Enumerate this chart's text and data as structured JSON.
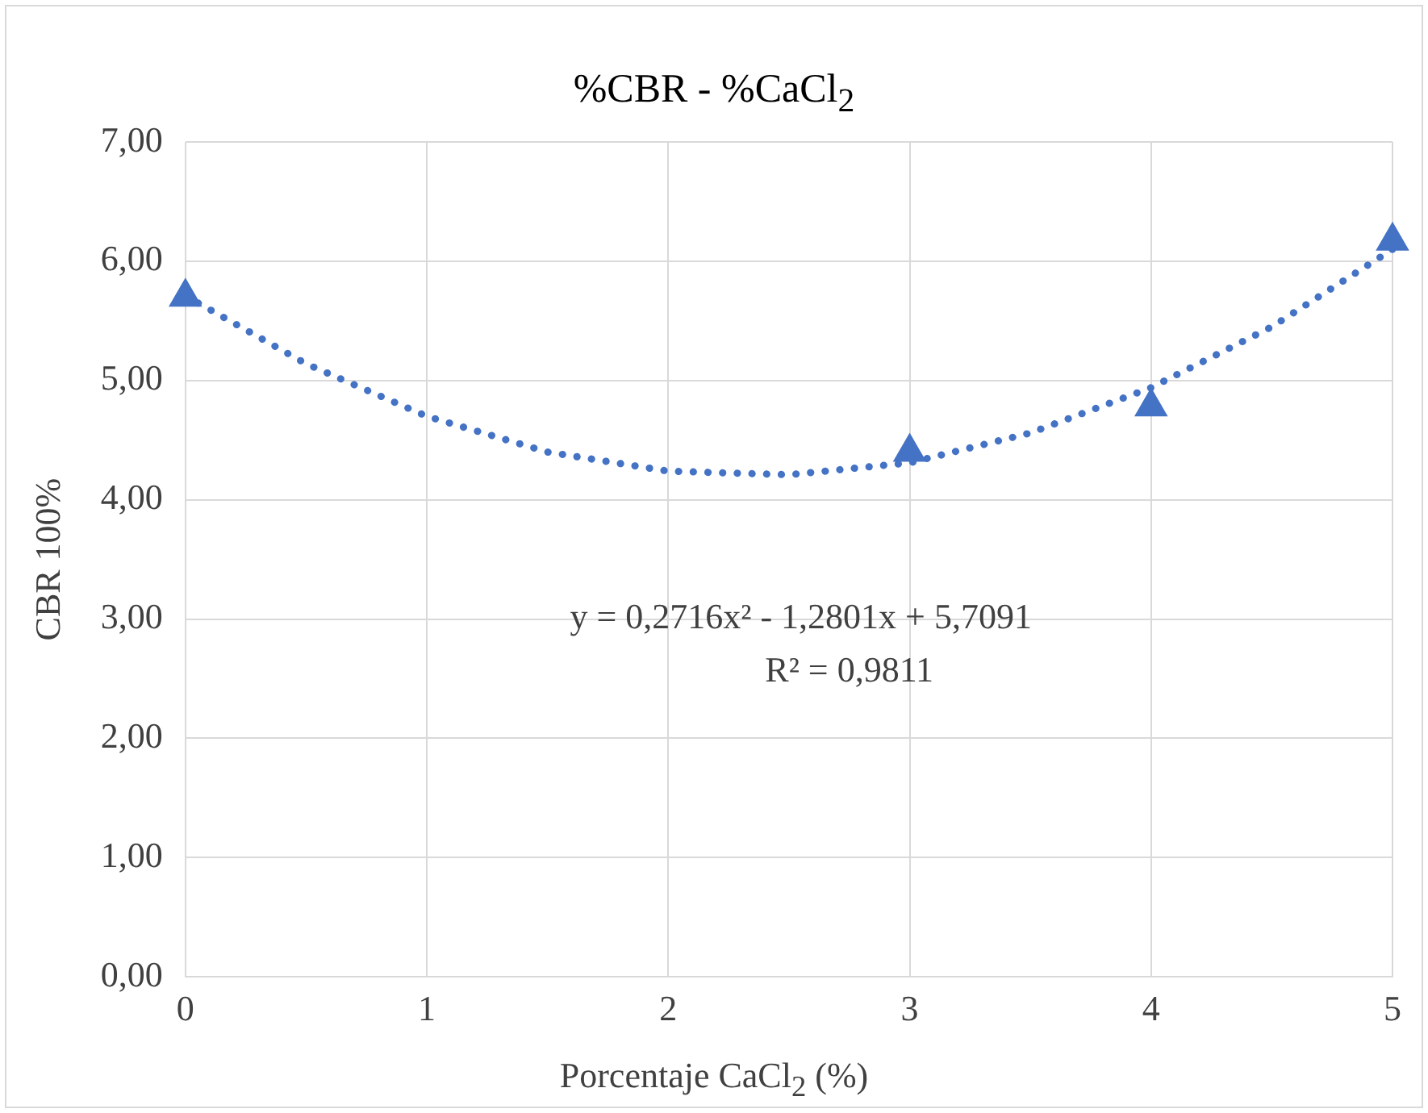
{
  "chart_data": {
    "type": "scatter",
    "title": "%CBR - %CaCl$_{2}$",
    "xlabel": "Porcentaje CaCl$_{2}$ (%)",
    "ylabel": "CBR 100%",
    "xlim": [
      0,
      5
    ],
    "xticks": [
      0,
      1,
      2,
      3,
      4,
      5
    ],
    "ylim": [
      0,
      7
    ],
    "yticks": [
      {
        "value": 0,
        "label": "0,00"
      },
      {
        "value": 1,
        "label": "1,00"
      },
      {
        "value": 2,
        "label": "2,00"
      },
      {
        "value": 3,
        "label": "3,00"
      },
      {
        "value": 4,
        "label": "4,00"
      },
      {
        "value": 5,
        "label": "5,00"
      },
      {
        "value": 6,
        "label": "6,00"
      },
      {
        "value": 7,
        "label": "7,00"
      }
    ],
    "grid": true,
    "legend": false,
    "series": [
      {
        "type": "scatter",
        "color": "#4472c4",
        "marker": "triangle",
        "x": [
          0,
          3,
          4,
          5
        ],
        "values": [
          5.7,
          4.4,
          4.78,
          6.17
        ]
      },
      {
        "type": "line",
        "color": "#4472c4",
        "marker": "none",
        "line_style": "dotted",
        "x": [
          0,
          0.5,
          1,
          1.5,
          2,
          2.5,
          3,
          3.5,
          4,
          4.5,
          5
        ],
        "values": [
          5.71,
          5.14,
          4.7,
          4.4,
          4.24,
          4.21,
          4.31,
          4.56,
          4.94,
          5.45,
          6.1
        ]
      }
    ],
    "annotations": [
      "y = 0,2716x² - 1,2801x + 5,7091",
      "R² = 0,9811"
    ]
  }
}
